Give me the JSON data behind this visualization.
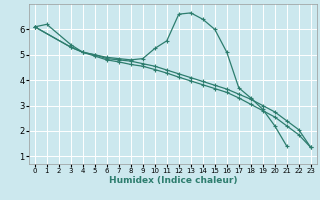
{
  "title": "",
  "xlabel": "Humidex (Indice chaleur)",
  "ylabel": "",
  "bg_color": "#cce8ee",
  "grid_color": "#ffffff",
  "line_color": "#2d7d6e",
  "xlim": [
    -0.5,
    23.5
  ],
  "ylim": [
    0.7,
    7.0
  ],
  "yticks": [
    1,
    2,
    3,
    4,
    5,
    6
  ],
  "xticks": [
    0,
    1,
    2,
    3,
    4,
    5,
    6,
    7,
    8,
    9,
    10,
    11,
    12,
    13,
    14,
    15,
    16,
    17,
    18,
    19,
    20,
    21,
    22,
    23
  ],
  "series": [
    {
      "x": [
        0,
        1,
        3,
        4,
        5,
        6,
        7,
        8,
        9,
        10,
        11,
        12,
        13,
        14,
        15,
        16,
        17,
        18,
        19,
        20,
        21
      ],
      "y": [
        6.1,
        6.2,
        5.4,
        5.1,
        5.0,
        4.9,
        4.85,
        4.8,
        4.85,
        5.25,
        5.55,
        6.6,
        6.65,
        6.4,
        6.0,
        5.1,
        3.7,
        3.3,
        2.85,
        2.2,
        1.4
      ]
    },
    {
      "x": [
        0,
        3,
        4,
        5,
        6,
        7,
        8,
        9,
        10,
        11,
        12,
        13,
        14,
        15,
        16,
        17,
        18,
        19,
        20,
        21,
        22,
        23
      ],
      "y": [
        6.1,
        5.3,
        5.1,
        5.0,
        4.85,
        4.8,
        4.75,
        4.65,
        4.55,
        4.4,
        4.25,
        4.1,
        3.95,
        3.8,
        3.65,
        3.45,
        3.25,
        3.0,
        2.75,
        2.4,
        2.05,
        1.35
      ]
    },
    {
      "x": [
        0,
        3,
        4,
        5,
        6,
        7,
        8,
        9,
        10,
        11,
        12,
        13,
        14,
        15,
        16,
        17,
        18,
        19,
        20,
        21,
        22,
        23
      ],
      "y": [
        6.1,
        5.3,
        5.1,
        4.95,
        4.8,
        4.72,
        4.62,
        4.55,
        4.42,
        4.28,
        4.12,
        3.97,
        3.82,
        3.67,
        3.52,
        3.3,
        3.05,
        2.8,
        2.55,
        2.2,
        1.85,
        1.35
      ]
    }
  ]
}
